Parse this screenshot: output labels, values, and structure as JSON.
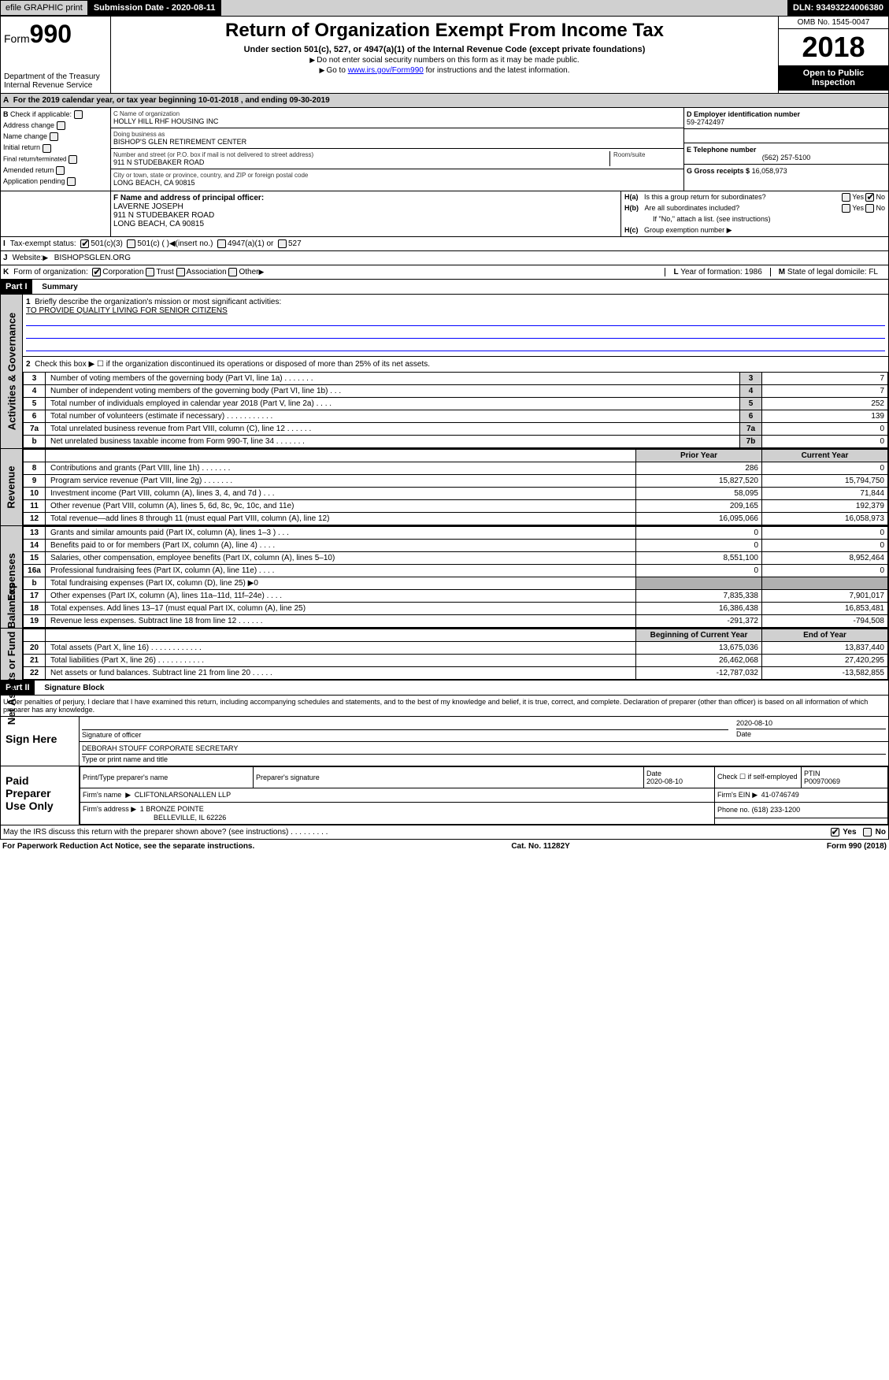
{
  "topbar": {
    "efile": "efile GRAPHIC print",
    "submission": "Submission Date - 2020-08-11",
    "dln": "DLN: 93493224006380"
  },
  "header": {
    "form_prefix": "Form",
    "form_number": "990",
    "dept1": "Department of the Treasury",
    "dept2": "Internal Revenue Service",
    "title": "Return of Organization Exempt From Income Tax",
    "subtitle": "Under section 501(c), 527, or 4947(a)(1) of the Internal Revenue Code (except private foundations)",
    "note1": "Do not enter social security numbers on this form as it may be made public.",
    "note2_pre": "Go to ",
    "note2_link": "www.irs.gov/Form990",
    "note2_post": " for instructions and the latest information.",
    "omb": "OMB No. 1545-0047",
    "year": "2018",
    "open": "Open to Public Inspection"
  },
  "section_a": {
    "label": "A",
    "text": "For the 2019 calendar year, or tax year beginning 10-01-2018    , and ending 09-30-2019"
  },
  "section_b": {
    "label": "B",
    "check_if_applicable": "Check if applicable:",
    "items": [
      "Address change",
      "Name change",
      "Initial return",
      "Final return/terminated",
      "Amended return",
      "Application pending"
    ]
  },
  "section_c": {
    "label_name": "C Name of organization",
    "name": "HOLLY HILL RHF HOUSING INC",
    "dba_label": "Doing business as",
    "dba": "BISHOP'S GLEN RETIREMENT CENTER",
    "street_label": "Number and street (or P.O. box if mail is not delivered to street address)",
    "room_label": "Room/suite",
    "street": "911 N STUDEBAKER ROAD",
    "city_label": "City or town, state or province, country, and ZIP or foreign postal code",
    "city": "LONG BEACH, CA  90815"
  },
  "section_d": {
    "label": "D Employer identification number",
    "value": "59-2742497"
  },
  "section_e": {
    "label": "E Telephone number",
    "value": "(562) 257-5100"
  },
  "section_g": {
    "label": "G Gross receipts $",
    "value": "16,058,973"
  },
  "section_f": {
    "label": "F Name and address of principal officer:",
    "name": "LAVERNE JOSEPH",
    "street": "911 N STUDEBAKER ROAD",
    "city": "LONG BEACH, CA  90815"
  },
  "section_h": {
    "ha_label": "H(a)",
    "ha_text": "Is this a group return for subordinates?",
    "hb_label": "H(b)",
    "hb_text": "Are all subordinates included?",
    "hb_note": "If \"No,\" attach a list. (see instructions)",
    "hc_label": "H(c)",
    "hc_text": "Group exemption number",
    "yes": "Yes",
    "no": "No"
  },
  "section_i": {
    "label": "I",
    "text": "Tax-exempt status:",
    "opts": [
      "501(c)(3)",
      "501(c) (  )",
      "(insert no.)",
      "4947(a)(1) or",
      "527"
    ]
  },
  "section_j": {
    "label": "J",
    "text": "Website:",
    "value": "BISHOPSGLEN.ORG"
  },
  "section_k": {
    "label": "K",
    "text": "Form of organization:",
    "opts": [
      "Corporation",
      "Trust",
      "Association",
      "Other"
    ]
  },
  "section_l": {
    "label": "L",
    "text": "Year of formation:",
    "value": "1986"
  },
  "section_m": {
    "label": "M",
    "text": "State of legal domicile:",
    "value": "FL"
  },
  "part1": {
    "header": "Part I",
    "title": "Summary",
    "line1_label": "1",
    "line1_text": "Briefly describe the organization's mission or most significant activities:",
    "mission": "TO PROVIDE QUALITY LIVING FOR SENIOR CITIZENS",
    "line2_label": "2",
    "line2_text": "Check this box ▶ ☐ if the organization discontinued its operations or disposed of more than 25% of its net assets.",
    "prior_year_hdr": "Prior Year",
    "current_year_hdr": "Current Year",
    "boy_hdr": "Beginning of Current Year",
    "eoy_hdr": "End of Year"
  },
  "governance_rows": [
    {
      "n": "3",
      "desc": "Number of voting members of the governing body (Part VI, line 1a)   .   .   .   .   .   .   .",
      "box": "3",
      "val": "7"
    },
    {
      "n": "4",
      "desc": "Number of independent voting members of the governing body (Part VI, line 1b)   .   .   .",
      "box": "4",
      "val": "7"
    },
    {
      "n": "5",
      "desc": "Total number of individuals employed in calendar year 2018 (Part V, line 2a)   .   .   .   .",
      "box": "5",
      "val": "252"
    },
    {
      "n": "6",
      "desc": "Total number of volunteers (estimate if necessary)   .   .   .   .   .   .   .   .   .   .   .",
      "box": "6",
      "val": "139"
    },
    {
      "n": "7a",
      "desc": "Total unrelated business revenue from Part VIII, column (C), line 12   .   .   .   .   .   .",
      "box": "7a",
      "val": "0"
    },
    {
      "n": "b",
      "desc": "Net unrelated business taxable income from Form 990-T, line 34   .   .   .   .   .   .   .",
      "box": "7b",
      "val": "0"
    }
  ],
  "revenue_rows": [
    {
      "n": "8",
      "desc": "Contributions and grants (Part VIII, line 1h)   .   .   .   .   .   .   .",
      "py": "286",
      "cy": "0"
    },
    {
      "n": "9",
      "desc": "Program service revenue (Part VIII, line 2g)   .   .   .   .   .   .   .",
      "py": "15,827,520",
      "cy": "15,794,750"
    },
    {
      "n": "10",
      "desc": "Investment income (Part VIII, column (A), lines 3, 4, and 7d )   .   .   .",
      "py": "58,095",
      "cy": "71,844"
    },
    {
      "n": "11",
      "desc": "Other revenue (Part VIII, column (A), lines 5, 6d, 8c, 9c, 10c, and 11e)",
      "py": "209,165",
      "cy": "192,379"
    },
    {
      "n": "12",
      "desc": "Total revenue—add lines 8 through 11 (must equal Part VIII, column (A), line 12)",
      "py": "16,095,066",
      "cy": "16,058,973"
    }
  ],
  "expense_rows": [
    {
      "n": "13",
      "desc": "Grants and similar amounts paid (Part IX, column (A), lines 1–3 )   .   .   .",
      "py": "0",
      "cy": "0"
    },
    {
      "n": "14",
      "desc": "Benefits paid to or for members (Part IX, column (A), line 4)   .   .   .   .",
      "py": "0",
      "cy": "0"
    },
    {
      "n": "15",
      "desc": "Salaries, other compensation, employee benefits (Part IX, column (A), lines 5–10)",
      "py": "8,551,100",
      "cy": "8,952,464"
    },
    {
      "n": "16a",
      "desc": "Professional fundraising fees (Part IX, column (A), line 11e)   .   .   .   .",
      "py": "0",
      "cy": "0"
    },
    {
      "n": "b",
      "desc": "Total fundraising expenses (Part IX, column (D), line 25) ▶0",
      "py": "",
      "cy": "",
      "shade": true
    },
    {
      "n": "17",
      "desc": "Other expenses (Part IX, column (A), lines 11a–11d, 11f–24e)   .   .   .   .",
      "py": "7,835,338",
      "cy": "7,901,017"
    },
    {
      "n": "18",
      "desc": "Total expenses. Add lines 13–17 (must equal Part IX, column (A), line 25)",
      "py": "16,386,438",
      "cy": "16,853,481"
    },
    {
      "n": "19",
      "desc": "Revenue less expenses. Subtract line 18 from line 12   .   .   .   .   .   .",
      "py": "-291,372",
      "cy": "-794,508"
    }
  ],
  "netassets_rows": [
    {
      "n": "20",
      "desc": "Total assets (Part X, line 16)   .   .   .   .   .   .   .   .   .   .   .   .",
      "py": "13,675,036",
      "cy": "13,837,440"
    },
    {
      "n": "21",
      "desc": "Total liabilities (Part X, line 26)   .   .   .   .   .   .   .   .   .   .   .",
      "py": "26,462,068",
      "cy": "27,420,295"
    },
    {
      "n": "22",
      "desc": "Net assets or fund balances. Subtract line 21 from line 20   .   .   .   .   .",
      "py": "-12,787,032",
      "cy": "-13,582,855"
    }
  ],
  "part2": {
    "header": "Part II",
    "title": "Signature Block",
    "perjury": "Under penalties of perjury, I declare that I have examined this return, including accompanying schedules and statements, and to the best of my knowledge and belief, it is true, correct, and complete. Declaration of preparer (other than officer) is based on all information of which preparer has any knowledge."
  },
  "sign": {
    "here": "Sign Here",
    "sig_officer": "Signature of officer",
    "date_label": "Date",
    "date": "2020-08-10",
    "name_title": "DEBORAH STOUFF  CORPORATE SECRETARY",
    "name_title_label": "Type or print name and title"
  },
  "paid": {
    "label": "Paid Preparer Use Only",
    "print_name_label": "Print/Type preparer's name",
    "sig_label": "Preparer's signature",
    "date_label": "Date",
    "date": "2020-08-10",
    "check_self": "Check ☐ if self-employed",
    "ptin_label": "PTIN",
    "ptin": "P00970069",
    "firm_name_label": "Firm's name",
    "firm_name": "CLIFTONLARSONALLEN LLP",
    "firm_ein_label": "Firm's EIN",
    "firm_ein": "41-0746749",
    "firm_addr_label": "Firm's address",
    "firm_addr1": "1 BRONZE POINTE",
    "firm_addr2": "BELLEVILLE, IL  62226",
    "phone_label": "Phone no.",
    "phone": "(618) 233-1200"
  },
  "discuss": {
    "text": "May the IRS discuss this return with the preparer shown above? (see instructions)   .   .   .   .   .   .   .   .   .",
    "yes": "Yes",
    "no": "No"
  },
  "footer": {
    "left": "For Paperwork Reduction Act Notice, see the separate instructions.",
    "mid": "Cat. No. 11282Y",
    "right": "Form 990 (2018)"
  },
  "side_labels": {
    "governance": "Activities & Governance",
    "revenue": "Revenue",
    "expenses": "Expenses",
    "netassets": "Net Assets or Fund Balances"
  }
}
